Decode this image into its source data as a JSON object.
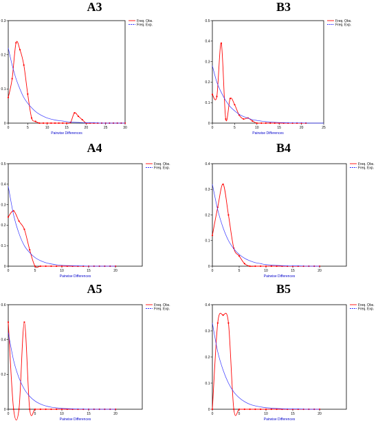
{
  "colors": {
    "observed": "#ff0000",
    "expected": "#3333ff",
    "axis": "#000000",
    "axis_title": "#0000cc"
  },
  "chart_data": [
    {
      "title": "A3",
      "type": "line",
      "xlabel": "Pairwise Differences",
      "ylabel": "",
      "xlim": [
        0,
        30
      ],
      "ylim": [
        0,
        0.3
      ],
      "xticks": [
        0,
        5,
        10,
        15,
        20,
        25,
        30
      ],
      "xtick_labels": [
        "0",
        "5",
        "10",
        "15",
        "20",
        "25",
        "30"
      ],
      "yticks": [
        0,
        0.1,
        0.2,
        0.3
      ],
      "ytick_labels": [
        "0",
        "0.1",
        "0.2",
        "0.3"
      ],
      "legend": [
        "Freq. Obs.",
        "Freq. Exp."
      ],
      "legend_position": "top-right",
      "series": [
        {
          "name": "Freq. Obs.",
          "style": "solid",
          "markers": true,
          "x": [
            0,
            1,
            2,
            3,
            4,
            5,
            6,
            7,
            8,
            9,
            10,
            11,
            12,
            13,
            14,
            15,
            16,
            17,
            18,
            19,
            20,
            21,
            22,
            23,
            24,
            25,
            26,
            27,
            28,
            29,
            30
          ],
          "y": [
            0.075,
            0.13,
            0.235,
            0.215,
            0.17,
            0.085,
            0.015,
            0.005,
            0,
            0,
            0,
            0,
            0,
            0,
            0,
            0,
            0.002,
            0.03,
            0.02,
            0.01,
            0,
            0,
            0,
            0,
            0,
            0,
            0,
            0,
            0,
            0,
            0
          ]
        },
        {
          "name": "Freq. Exp.",
          "style": "solid",
          "markers": false,
          "x": [
            0,
            1,
            2,
            3,
            4,
            5,
            6,
            7,
            8,
            9,
            10,
            12,
            14,
            16,
            18,
            20,
            22,
            24,
            26,
            28,
            30
          ],
          "y": [
            0.22,
            0.17,
            0.13,
            0.1,
            0.075,
            0.058,
            0.045,
            0.034,
            0.026,
            0.02,
            0.015,
            0.009,
            0.006,
            0.003,
            0.002,
            0.001,
            0.001,
            0,
            0,
            0,
            0
          ]
        }
      ]
    },
    {
      "title": "B3",
      "type": "line",
      "xlabel": "Pairwise Differences",
      "ylabel": "",
      "xlim": [
        0,
        25
      ],
      "ylim": [
        0,
        0.5
      ],
      "xticks": [
        0,
        5,
        10,
        15,
        20,
        25
      ],
      "xtick_labels": [
        "0",
        "5",
        "10",
        "15",
        "20",
        "25"
      ],
      "yticks": [
        0,
        0.1,
        0.2,
        0.3,
        0.4,
        0.5
      ],
      "ytick_labels": [
        "0",
        "0.1",
        "0.2",
        "0.3",
        "0.4",
        "0.5"
      ],
      "legend": [
        "Freq. Obs.",
        "Freq. Exp."
      ],
      "legend_position": "top-right",
      "series": [
        {
          "name": "Freq. Obs.",
          "style": "solid",
          "markers": true,
          "x": [
            0,
            1,
            2,
            3,
            4,
            5,
            6,
            7,
            8,
            9,
            10,
            11,
            12,
            13,
            14,
            15,
            16,
            17,
            18,
            19,
            20,
            21
          ],
          "y": [
            0.14,
            0.13,
            0.39,
            0.02,
            0.12,
            0.09,
            0.04,
            0.02,
            0.025,
            0.01,
            0,
            0,
            0,
            0,
            0,
            0,
            0,
            0,
            0,
            0,
            0,
            0
          ]
        },
        {
          "name": "Freq. Exp.",
          "style": "solid",
          "markers": false,
          "x": [
            0,
            1,
            2,
            3,
            4,
            5,
            6,
            7,
            8,
            9,
            10,
            12,
            14,
            16,
            18,
            20,
            22,
            25
          ],
          "y": [
            0.28,
            0.2,
            0.15,
            0.11,
            0.08,
            0.06,
            0.043,
            0.032,
            0.024,
            0.017,
            0.013,
            0.007,
            0.004,
            0.002,
            0.001,
            0.001,
            0,
            0
          ]
        }
      ]
    },
    {
      "title": "A4",
      "type": "line",
      "xlabel": "Pairwise Differences",
      "ylabel": "",
      "xlim": [
        0,
        25
      ],
      "ylim": [
        0,
        0.5
      ],
      "xticks": [
        0,
        5,
        10,
        15,
        20
      ],
      "xtick_labels": [
        "0",
        "5",
        "10",
        "15",
        "20"
      ],
      "yticks": [
        0,
        0.1,
        0.2,
        0.3,
        0.4,
        0.5
      ],
      "ytick_labels": [
        "0",
        "0.1",
        "0.2",
        "0.3",
        "0.4",
        "0.5"
      ],
      "legend": [
        "Freq. Obs.",
        "Freq. Exp."
      ],
      "legend_position": "top-right",
      "series": [
        {
          "name": "Freq. Obs.",
          "style": "solid",
          "markers": true,
          "x": [
            0,
            1,
            2,
            3,
            4,
            5,
            6,
            7,
            8,
            9,
            10,
            11,
            12,
            13,
            14,
            15,
            16,
            17,
            18,
            19,
            20
          ],
          "y": [
            0.24,
            0.27,
            0.22,
            0.18,
            0.08,
            0,
            0,
            0,
            0,
            0,
            0,
            0,
            0,
            0,
            0,
            0,
            0,
            0,
            0,
            0,
            0
          ]
        },
        {
          "name": "Freq. Exp.",
          "style": "solid",
          "markers": false,
          "x": [
            0,
            1,
            2,
            3,
            4,
            5,
            6,
            7,
            8,
            9,
            10,
            12,
            14,
            16,
            18,
            20
          ],
          "y": [
            0.39,
            0.25,
            0.16,
            0.1,
            0.066,
            0.042,
            0.027,
            0.017,
            0.011,
            0.007,
            0.004,
            0.002,
            0.001,
            0,
            0,
            0
          ]
        }
      ]
    },
    {
      "title": "B4",
      "type": "line",
      "xlabel": "Pairwise Differences",
      "ylabel": "",
      "xlim": [
        0,
        25
      ],
      "ylim": [
        0,
        0.4
      ],
      "xticks": [
        0,
        5,
        10,
        15,
        20
      ],
      "xtick_labels": [
        "0",
        "5",
        "10",
        "15",
        "20"
      ],
      "yticks": [
        0,
        0.1,
        0.2,
        0.3,
        0.4
      ],
      "ytick_labels": [
        "0",
        "0.1",
        "0.2",
        "0.3",
        "0.4"
      ],
      "legend": [
        "Freq. Obs.",
        "Freq. Exp."
      ],
      "legend_position": "top-right",
      "series": [
        {
          "name": "Freq. Obs.",
          "style": "solid",
          "markers": true,
          "x": [
            0,
            1,
            2,
            3,
            4,
            5,
            6,
            7,
            8,
            9,
            10,
            11,
            12,
            13,
            14,
            15,
            16,
            17,
            18,
            19,
            20
          ],
          "y": [
            0.12,
            0.23,
            0.32,
            0.2,
            0.07,
            0.04,
            0.01,
            0,
            0,
            0,
            0,
            0,
            0,
            0,
            0,
            0,
            0,
            0,
            0,
            0,
            0
          ]
        },
        {
          "name": "Freq. Exp.",
          "style": "solid",
          "markers": false,
          "x": [
            0,
            1,
            2,
            3,
            4,
            5,
            6,
            7,
            8,
            9,
            10,
            12,
            14,
            16,
            18,
            20
          ],
          "y": [
            0.32,
            0.22,
            0.15,
            0.1,
            0.068,
            0.046,
            0.031,
            0.021,
            0.014,
            0.01,
            0.006,
            0.003,
            0.001,
            0.001,
            0,
            0
          ]
        }
      ]
    },
    {
      "title": "A5",
      "type": "line",
      "xlabel": "Pairwise Differences",
      "ylabel": "",
      "xlim": [
        0,
        25
      ],
      "ylim": [
        0,
        0.6
      ],
      "xticks": [
        0,
        5,
        10,
        15,
        20
      ],
      "xtick_labels": [
        "0",
        "5",
        "10",
        "15",
        "20"
      ],
      "yticks": [
        0,
        0.2,
        0.4,
        0.6
      ],
      "ytick_labels": [
        "0",
        "0.2",
        "0.4",
        "0.6"
      ],
      "legend": [
        "Freq. Obs.",
        "Freq. Exp."
      ],
      "legend_position": "top-right",
      "series": [
        {
          "name": "Freq. Obs.",
          "style": "solid",
          "markers": true,
          "x": [
            0,
            1,
            2,
            3,
            4,
            5,
            6,
            7,
            8,
            9,
            10,
            11,
            12,
            13,
            14,
            15,
            16,
            17,
            18,
            19,
            20
          ],
          "y": [
            0.5,
            0,
            0,
            0.5,
            0,
            0,
            0,
            0,
            0,
            0,
            0,
            0,
            0,
            0,
            0,
            0,
            0,
            0,
            0,
            0,
            0
          ]
        },
        {
          "name": "Freq. Exp.",
          "style": "solid",
          "markers": false,
          "x": [
            0,
            1,
            2,
            3,
            4,
            5,
            6,
            7,
            8,
            9,
            10,
            12,
            14,
            16,
            18,
            20
          ],
          "y": [
            0.44,
            0.28,
            0.18,
            0.115,
            0.074,
            0.047,
            0.03,
            0.019,
            0.012,
            0.008,
            0.005,
            0.002,
            0.001,
            0,
            0,
            0
          ]
        }
      ]
    },
    {
      "title": "B5",
      "type": "line",
      "xlabel": "Pairwise Differences",
      "ylabel": "",
      "xlim": [
        0,
        25
      ],
      "ylim": [
        0,
        0.4
      ],
      "xticks": [
        0,
        5,
        10,
        15,
        20
      ],
      "xtick_labels": [
        "0",
        "5",
        "10",
        "15",
        "20"
      ],
      "yticks": [
        0,
        0.1,
        0.2,
        0.3,
        0.4
      ],
      "ytick_labels": [
        "0",
        "0.1",
        "0.2",
        "0.3",
        "0.4"
      ],
      "legend": [
        "Freq. Obs.",
        "Freq. Exp."
      ],
      "legend_position": "top-right",
      "series": [
        {
          "name": "Freq. Obs.",
          "style": "solid",
          "markers": true,
          "x": [
            0,
            1,
            2,
            3,
            4,
            5,
            6,
            7,
            8,
            9,
            10,
            11,
            12,
            13,
            14,
            15,
            16,
            17,
            18,
            19,
            20
          ],
          "y": [
            0,
            0.33,
            0.36,
            0.33,
            0,
            0,
            0,
            0,
            0,
            0,
            0,
            0,
            0,
            0,
            0,
            0,
            0,
            0,
            0,
            0,
            0
          ]
        },
        {
          "name": "Freq. Exp.",
          "style": "solid",
          "markers": false,
          "x": [
            0,
            1,
            2,
            3,
            4,
            5,
            6,
            7,
            8,
            9,
            10,
            12,
            14,
            16,
            18,
            20
          ],
          "y": [
            0.33,
            0.22,
            0.15,
            0.1,
            0.066,
            0.044,
            0.029,
            0.019,
            0.013,
            0.009,
            0.006,
            0.003,
            0.001,
            0.001,
            0,
            0
          ]
        }
      ]
    }
  ]
}
